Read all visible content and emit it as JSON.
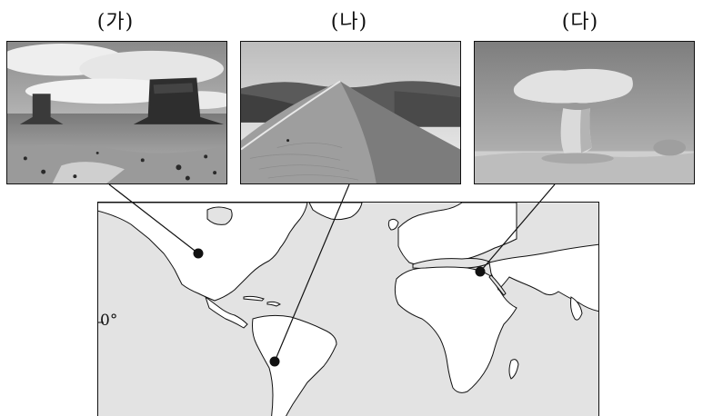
{
  "labels": {
    "ga": "(가)",
    "na": "(나)",
    "da": "(다)"
  },
  "map": {
    "equator_label": "0°",
    "land_color": "#ffffff",
    "ocean_color": "#e3e3e3"
  },
  "photos": {
    "ga": "mesa-butte-desert-landscape",
    "na": "sand-dune-ridge",
    "da": "mushroom-rock"
  }
}
